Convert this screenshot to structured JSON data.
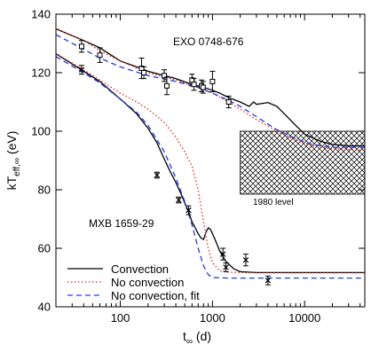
{
  "chart_data": {
    "type": "line",
    "xscale": "log",
    "xlim": [
      20,
      45000
    ],
    "ylim": [
      40,
      140
    ],
    "xlabel": {
      "main": "t",
      "sub": "∞",
      "unit": " (d)"
    },
    "ylabel": {
      "main": "kT",
      "sub": "eff,∞",
      "unit": " (eV)"
    },
    "xticks": [
      {
        "value": 100,
        "label": "100"
      },
      {
        "value": 1000,
        "label": "1000"
      },
      {
        "value": 10000,
        "label": "10000"
      }
    ],
    "yticks": [
      {
        "value": 40,
        "label": "40"
      },
      {
        "value": 60,
        "label": "60"
      },
      {
        "value": 80,
        "label": "80"
      },
      {
        "value": 100,
        "label": "100"
      },
      {
        "value": 120,
        "label": "120"
      },
      {
        "value": 140,
        "label": "140"
      }
    ],
    "colors": {
      "convection": "#000000",
      "no_convection": "#e8251f",
      "no_convection_fit": "#1f3ce0"
    },
    "series": [
      {
        "name": "Convection",
        "group": "EXO 0748-676",
        "style": "solid",
        "color": "#000000",
        "points": [
          [
            20,
            135
          ],
          [
            40,
            131
          ],
          [
            60,
            128.5
          ],
          [
            100,
            124
          ],
          [
            150,
            122
          ],
          [
            200,
            120.5
          ],
          [
            300,
            119
          ],
          [
            400,
            118
          ],
          [
            600,
            116
          ],
          [
            800,
            115
          ],
          [
            1000,
            114
          ],
          [
            1200,
            113
          ],
          [
            1500,
            111.5
          ],
          [
            2000,
            110
          ],
          [
            2500,
            108.5
          ],
          [
            2800,
            110
          ],
          [
            3000,
            109.2
          ],
          [
            3500,
            109.5
          ],
          [
            4000,
            109.8
          ],
          [
            5000,
            108.5
          ],
          [
            6000,
            106
          ],
          [
            8000,
            102
          ],
          [
            10000,
            99
          ],
          [
            15000,
            96.5
          ],
          [
            20000,
            95.5
          ],
          [
            30000,
            95
          ],
          [
            45000,
            95
          ]
        ]
      },
      {
        "name": "No convection",
        "group": "EXO 0748-676",
        "style": "dotted",
        "color": "#e8251f",
        "points": [
          [
            20,
            135
          ],
          [
            40,
            131
          ],
          [
            60,
            127.5
          ],
          [
            100,
            124
          ],
          [
            200,
            120
          ],
          [
            400,
            117.5
          ],
          [
            700,
            115
          ],
          [
            1000,
            113
          ],
          [
            1500,
            110
          ],
          [
            2000,
            107.5
          ],
          [
            3000,
            104
          ],
          [
            5000,
            100
          ],
          [
            8000,
            97
          ],
          [
            12000,
            95
          ],
          [
            20000,
            94
          ],
          [
            45000,
            93.5
          ]
        ]
      },
      {
        "name": "No convection, fit",
        "group": "EXO 0748-676",
        "style": "dashed",
        "color": "#1f3ce0",
        "points": [
          [
            20,
            133
          ],
          [
            40,
            128
          ],
          [
            60,
            125
          ],
          [
            100,
            122
          ],
          [
            200,
            119
          ],
          [
            400,
            117
          ],
          [
            700,
            115
          ],
          [
            1000,
            113
          ],
          [
            1500,
            110.5
          ],
          [
            2000,
            108.5
          ],
          [
            3000,
            105
          ],
          [
            5000,
            100.5
          ],
          [
            8000,
            97.5
          ],
          [
            12000,
            95.5
          ],
          [
            20000,
            94.5
          ],
          [
            45000,
            94.5
          ]
        ]
      },
      {
        "name": "Convection",
        "group": "MXB 1659-29",
        "style": "solid",
        "color": "#000000",
        "points": [
          [
            20,
            126.5
          ],
          [
            40,
            120.5
          ],
          [
            60,
            117
          ],
          [
            100,
            111
          ],
          [
            150,
            106
          ],
          [
            200,
            101
          ],
          [
            250,
            96
          ],
          [
            300,
            90.5
          ],
          [
            350,
            86
          ],
          [
            400,
            82.5
          ],
          [
            450,
            79
          ],
          [
            500,
            75.5
          ],
          [
            550,
            72.5
          ],
          [
            600,
            69
          ],
          [
            650,
            67
          ],
          [
            700,
            65
          ],
          [
            750,
            63.5
          ],
          [
            800,
            63
          ],
          [
            850,
            65.5
          ],
          [
            900,
            67
          ],
          [
            950,
            66.5
          ],
          [
            1000,
            65
          ],
          [
            1100,
            62
          ],
          [
            1200,
            59
          ],
          [
            1400,
            55.5
          ],
          [
            1700,
            53
          ],
          [
            2000,
            52
          ],
          [
            3000,
            51.7
          ],
          [
            45000,
            51.7
          ]
        ]
      },
      {
        "name": "No convection",
        "group": "MXB 1659-29",
        "style": "dotted",
        "color": "#e8251f",
        "points": [
          [
            20,
            126.5
          ],
          [
            40,
            121
          ],
          [
            60,
            117.5
          ],
          [
            100,
            113
          ],
          [
            150,
            110
          ],
          [
            200,
            107.5
          ],
          [
            300,
            103
          ],
          [
            400,
            98
          ],
          [
            500,
            93
          ],
          [
            600,
            88
          ],
          [
            700,
            80
          ],
          [
            800,
            69
          ],
          [
            900,
            60
          ],
          [
            1000,
            55
          ],
          [
            1200,
            52.3
          ],
          [
            1500,
            51.8
          ],
          [
            3000,
            51.6
          ],
          [
            45000,
            51.6
          ]
        ]
      },
      {
        "name": "No convection, fit",
        "group": "MXB 1659-29",
        "style": "dashed",
        "color": "#1f3ce0",
        "points": [
          [
            20,
            125.5
          ],
          [
            40,
            120
          ],
          [
            60,
            116.5
          ],
          [
            100,
            111
          ],
          [
            150,
            106.5
          ],
          [
            200,
            102
          ],
          [
            300,
            93
          ],
          [
            400,
            84
          ],
          [
            500,
            76
          ],
          [
            600,
            68
          ],
          [
            700,
            60
          ],
          [
            800,
            54
          ],
          [
            900,
            51
          ],
          [
            1000,
            50
          ],
          [
            1500,
            49.8
          ],
          [
            45000,
            49.8
          ]
        ]
      }
    ],
    "observations": [
      {
        "group": "EXO 0748-676",
        "marker": "square",
        "points": [
          {
            "x": 38,
            "y": 129,
            "err": 2
          },
          {
            "x": 60,
            "y": 126,
            "err": 2.5
          },
          {
            "x": 170,
            "y": 121.5,
            "err": 3.5
          },
          {
            "x": 180,
            "y": 120,
            "err": 2
          },
          {
            "x": 300,
            "y": 119,
            "err": 2
          },
          {
            "x": 320,
            "y": 115.5,
            "err": 3
          },
          {
            "x": 600,
            "y": 117.5,
            "err": 2
          },
          {
            "x": 630,
            "y": 116,
            "err": 2
          },
          {
            "x": 760,
            "y": 115.5,
            "err": 2
          },
          {
            "x": 790,
            "y": 115,
            "err": 2
          },
          {
            "x": 1000,
            "y": 117,
            "err": 3.5
          },
          {
            "x": 1500,
            "y": 110,
            "err": 2
          }
        ]
      },
      {
        "group": "MXB 1659-29",
        "marker": "x",
        "points": [
          {
            "x": 38,
            "y": 121,
            "err": 1.5
          },
          {
            "x": 250,
            "y": 85,
            "err": 1
          },
          {
            "x": 430,
            "y": 76.5,
            "err": 1
          },
          {
            "x": 550,
            "y": 73,
            "err": 1.5
          },
          {
            "x": 1300,
            "y": 58,
            "err": 2
          },
          {
            "x": 1400,
            "y": 53.5,
            "err": 1.5
          },
          {
            "x": 2300,
            "y": 56,
            "err": 2
          },
          {
            "x": 4000,
            "y": 49,
            "err": 1.5
          }
        ]
      }
    ],
    "annotations": [
      {
        "text": "EXO 0748-676"
      },
      {
        "text": "MXB 1659-29"
      },
      {
        "text": "1980 level"
      }
    ],
    "hatched_region": {
      "xlim": [
        2000,
        45000
      ],
      "ylim": [
        78.5,
        100
      ]
    },
    "legend": {
      "position": "bottom-left",
      "entries": [
        "Convection",
        "No convection",
        "No convection, fit"
      ]
    }
  }
}
